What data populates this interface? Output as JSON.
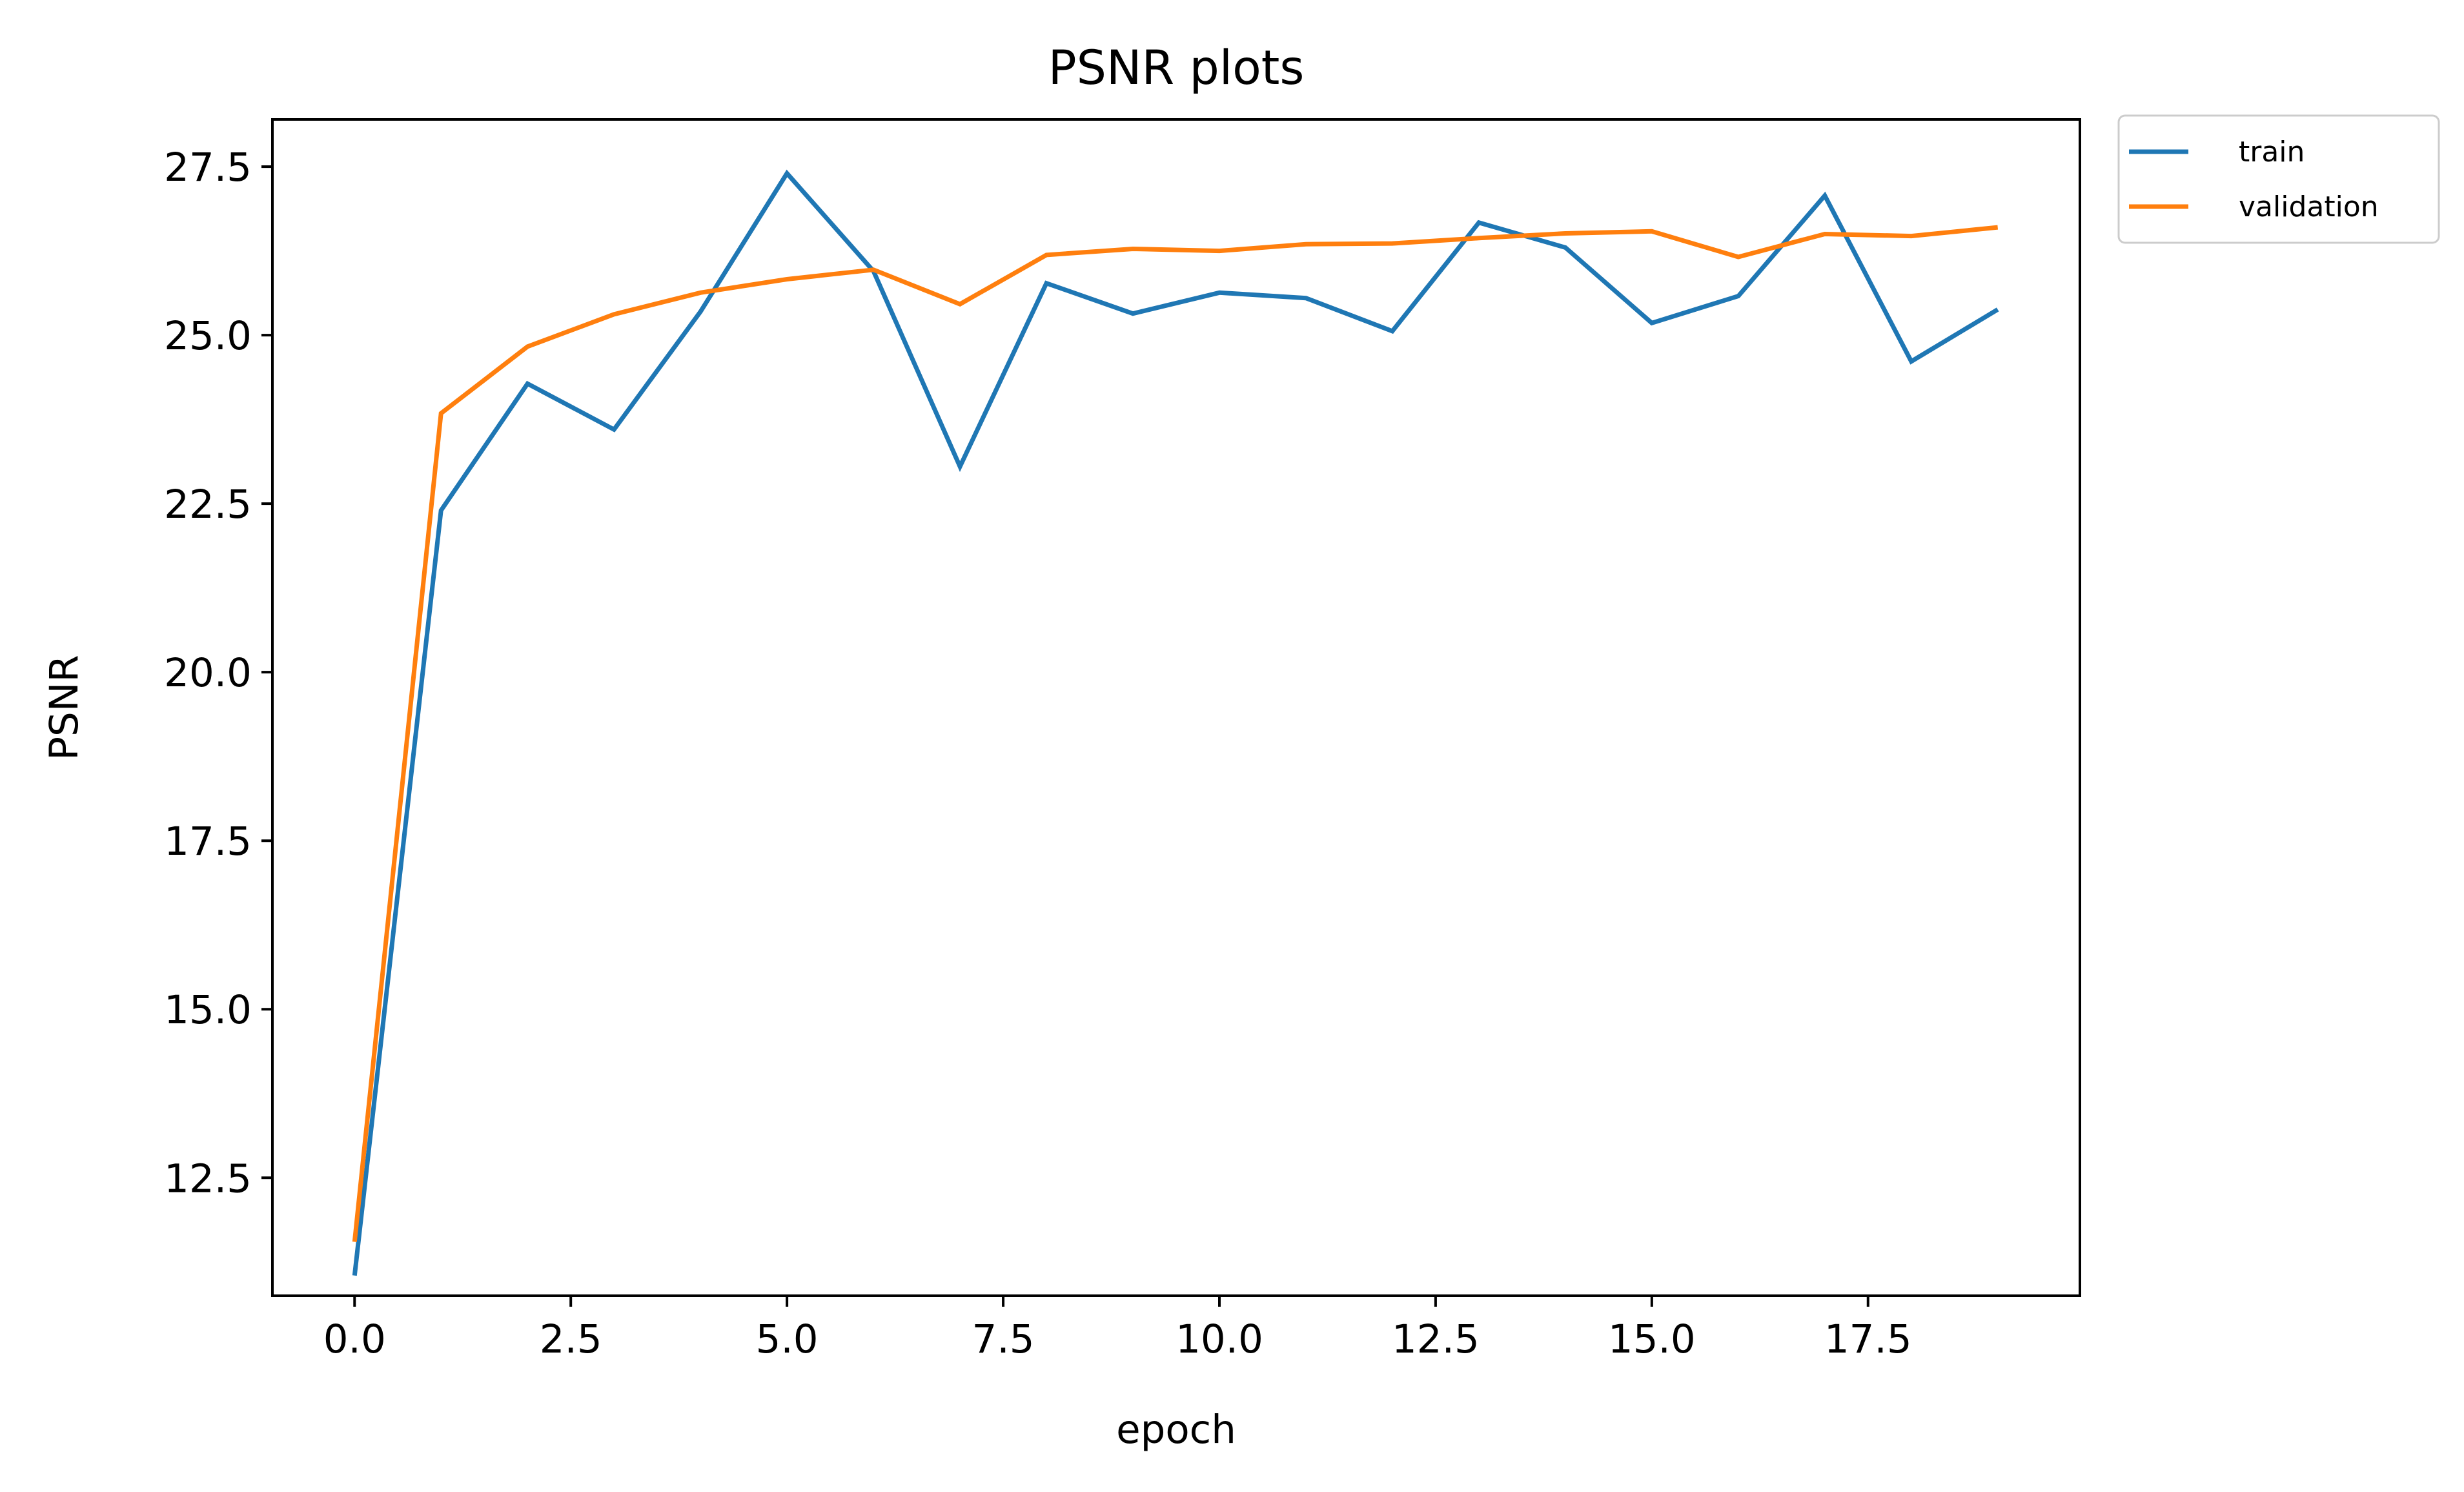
{
  "chart_data": {
    "type": "line",
    "title": "PSNR plots",
    "xlabel": "epoch",
    "ylabel": "PSNR",
    "x": [
      0,
      1,
      2,
      3,
      4,
      5,
      6,
      7,
      8,
      9,
      10,
      11,
      12,
      13,
      14,
      15,
      16,
      17,
      18,
      19
    ],
    "series": [
      {
        "name": "train",
        "color": "#1f77b4",
        "values": [
          11.05,
          22.4,
          24.28,
          23.6,
          25.35,
          27.4,
          25.95,
          23.05,
          25.77,
          25.32,
          25.63,
          25.55,
          25.06,
          26.67,
          26.3,
          25.18,
          25.58,
          27.07,
          24.61,
          25.38
        ]
      },
      {
        "name": "validation",
        "color": "#ff7f0e",
        "values": [
          11.55,
          23.84,
          24.83,
          25.31,
          25.63,
          25.83,
          25.97,
          25.46,
          26.19,
          26.28,
          26.25,
          26.35,
          26.36,
          26.44,
          26.51,
          26.54,
          26.16,
          26.5,
          26.47,
          26.6
        ]
      }
    ],
    "xlim": [
      -0.95,
      19.95
    ],
    "ylim": [
      10.75,
      28.2
    ],
    "xticks": [
      "0.0",
      "2.5",
      "5.0",
      "7.5",
      "10.0",
      "12.5",
      "15.0",
      "17.5"
    ],
    "yticks": [
      "12.5",
      "15.0",
      "17.5",
      "20.0",
      "22.5",
      "25.0",
      "27.5"
    ],
    "grid": false,
    "legend": "outside-top-right"
  }
}
